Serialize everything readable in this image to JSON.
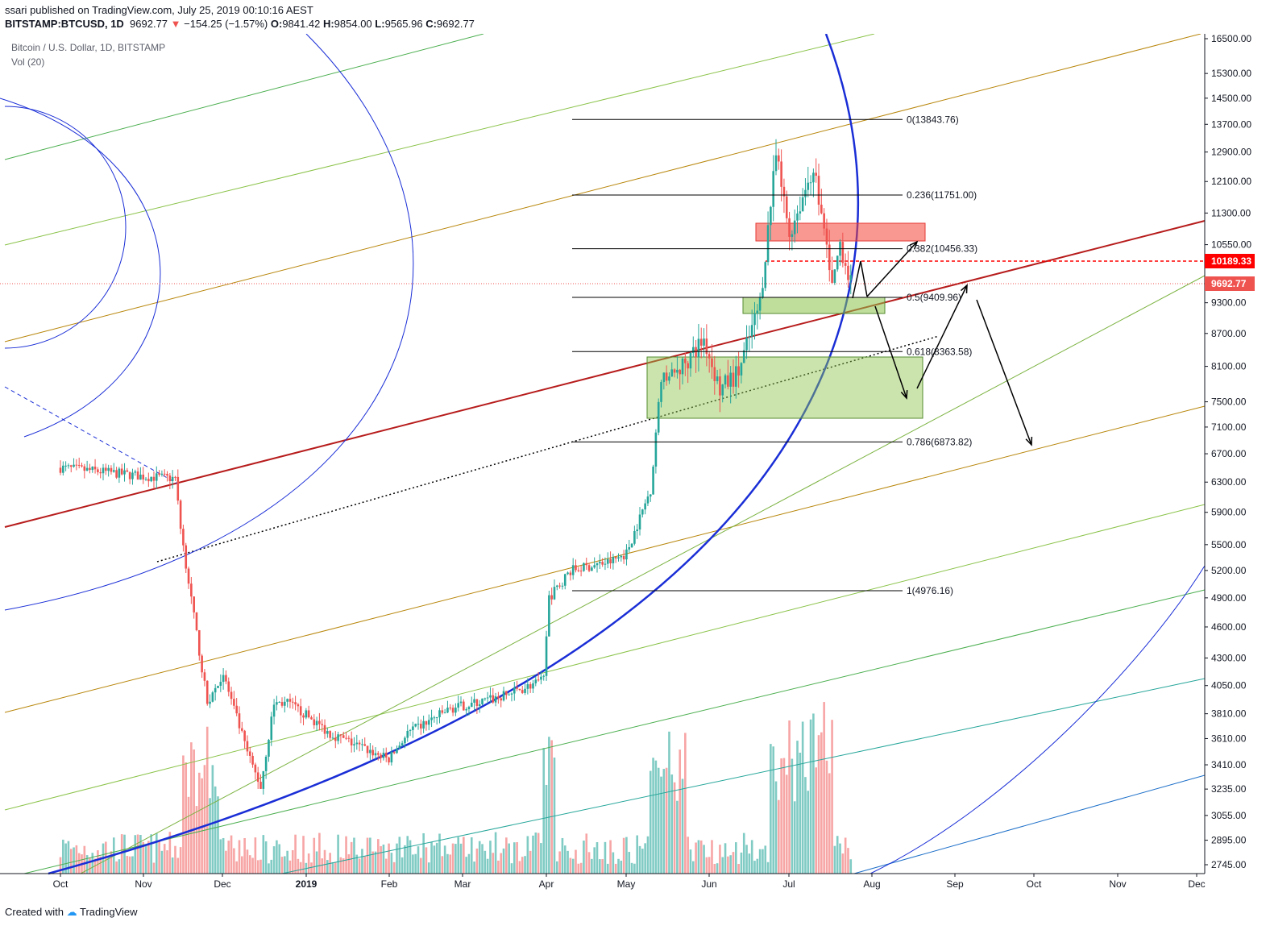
{
  "header": {
    "author": "ssari",
    "published_text": "published on TradingView.com, July 25, 2019 00:10:16 AEST",
    "symbol": "BITSTAMP:BTCUSD, 1D",
    "last": "9692.77",
    "change": "−154.25 (−1.57%)",
    "open_label": "O:",
    "open": "9841.42",
    "high_label": "H:",
    "high": "9854.00",
    "low_label": "L:",
    "low": "9565.96",
    "close_label": "C:",
    "close": "9692.77"
  },
  "legend": {
    "title": "Bitcoin / U.S. Dollar, 1D, BITSTAMP",
    "volume": "Vol (20)"
  },
  "footer": {
    "created_with": "Created with",
    "brand": "TradingView"
  },
  "colors": {
    "up": "#26a69a",
    "down": "#ef5350",
    "vol_up": "#80cbc4",
    "vol_down": "#f7a5a5",
    "trend_red": "#b71c1c",
    "arc_blue": "#1a2ed6"
  },
  "chart_data": {
    "type": "candlestick",
    "y_scale": "log",
    "ylim": [
      2745,
      16500
    ],
    "x_axis_labels": [
      "Oct",
      "Nov",
      "Dec",
      "2019",
      "Feb",
      "Mar",
      "Apr",
      "May",
      "Jun",
      "Jul",
      "Aug",
      "Sep",
      "Oct",
      "Nov",
      "Dec"
    ],
    "y_axis_labels": [
      "16500.00",
      "15300.00",
      "14500.00",
      "13700.00",
      "12900.00",
      "12100.00",
      "11300.00",
      "10550.00",
      "9300.00",
      "8700.00",
      "8100.00",
      "7500.00",
      "7100.00",
      "6700.00",
      "6300.00",
      "5900.00",
      "5500.00",
      "5200.00",
      "4900.00",
      "4600.00",
      "4300.00",
      "4050.00",
      "3810.00",
      "3610.00",
      "3410.00",
      "3235.00",
      "3055.00",
      "2895.00",
      "2745.00"
    ],
    "fibonacci": [
      {
        "level": "0",
        "price": 13843.76,
        "label": "0(13843.76)"
      },
      {
        "level": "0.236",
        "price": 11751.0,
        "label": "0.236(11751.00)"
      },
      {
        "level": "0.382",
        "price": 10456.33,
        "label": "0.382(10456.33)"
      },
      {
        "level": "0.5",
        "price": 9409.96,
        "label": "0.5(9409.96)"
      },
      {
        "level": "0.618",
        "price": 8363.58,
        "label": "0.618(8363.58)"
      },
      {
        "level": "0.786",
        "price": 6873.82,
        "label": "0.786(6873.82)"
      },
      {
        "level": "1",
        "price": 4976.16,
        "label": "1(4976.16)"
      }
    ],
    "price_tags": [
      {
        "label": "10189.33",
        "color": "#ff0000"
      },
      {
        "label": "9692.77",
        "color": "#ef5350"
      }
    ],
    "anchors": [
      {
        "date": "Oct 1",
        "price": 6500
      },
      {
        "date": "Oct 15",
        "price": 6450
      },
      {
        "date": "Nov 1",
        "price": 6380
      },
      {
        "date": "Nov 13",
        "price": 6350
      },
      {
        "date": "Nov 15",
        "price": 5700
      },
      {
        "date": "Nov 20",
        "price": 4700
      },
      {
        "date": "Nov 25",
        "price": 3900
      },
      {
        "date": "Dec 1",
        "price": 4150
      },
      {
        "date": "Dec 10",
        "price": 3500
      },
      {
        "date": "Dec 15",
        "price": 3250
      },
      {
        "date": "Dec 20",
        "price": 3900
      },
      {
        "date": "Dec 25",
        "price": 3900
      },
      {
        "date": "Jan 1",
        "price": 3800
      },
      {
        "date": "Jan 10",
        "price": 3650
      },
      {
        "date": "Feb 1",
        "price": 3450
      },
      {
        "date": "Feb 8",
        "price": 3650
      },
      {
        "date": "Feb 24",
        "price": 3850
      },
      {
        "date": "Mar 15",
        "price": 3950
      },
      {
        "date": "Mar 31",
        "price": 4100
      },
      {
        "date": "Apr 2",
        "price": 4900
      },
      {
        "date": "Apr 10",
        "price": 5200
      },
      {
        "date": "Apr 25",
        "price": 5300
      },
      {
        "date": "May 1",
        "price": 5400
      },
      {
        "date": "May 10",
        "price": 6200
      },
      {
        "date": "May 14",
        "price": 7900
      },
      {
        "date": "May 20",
        "price": 8000
      },
      {
        "date": "May 30",
        "price": 8600
      },
      {
        "date": "Jun 5",
        "price": 7700
      },
      {
        "date": "Jun 12",
        "price": 8000
      },
      {
        "date": "Jun 20",
        "price": 9300
      },
      {
        "date": "Jun 26",
        "price": 12800
      },
      {
        "date": "Jul 1",
        "price": 10800
      },
      {
        "date": "Jul 10",
        "price": 12500
      },
      {
        "date": "Jul 15",
        "price": 10500
      },
      {
        "date": "Jul 17",
        "price": 9600
      },
      {
        "date": "Jul 20",
        "price": 10600
      },
      {
        "date": "Jul 24",
        "price": 9692.77
      }
    ]
  }
}
